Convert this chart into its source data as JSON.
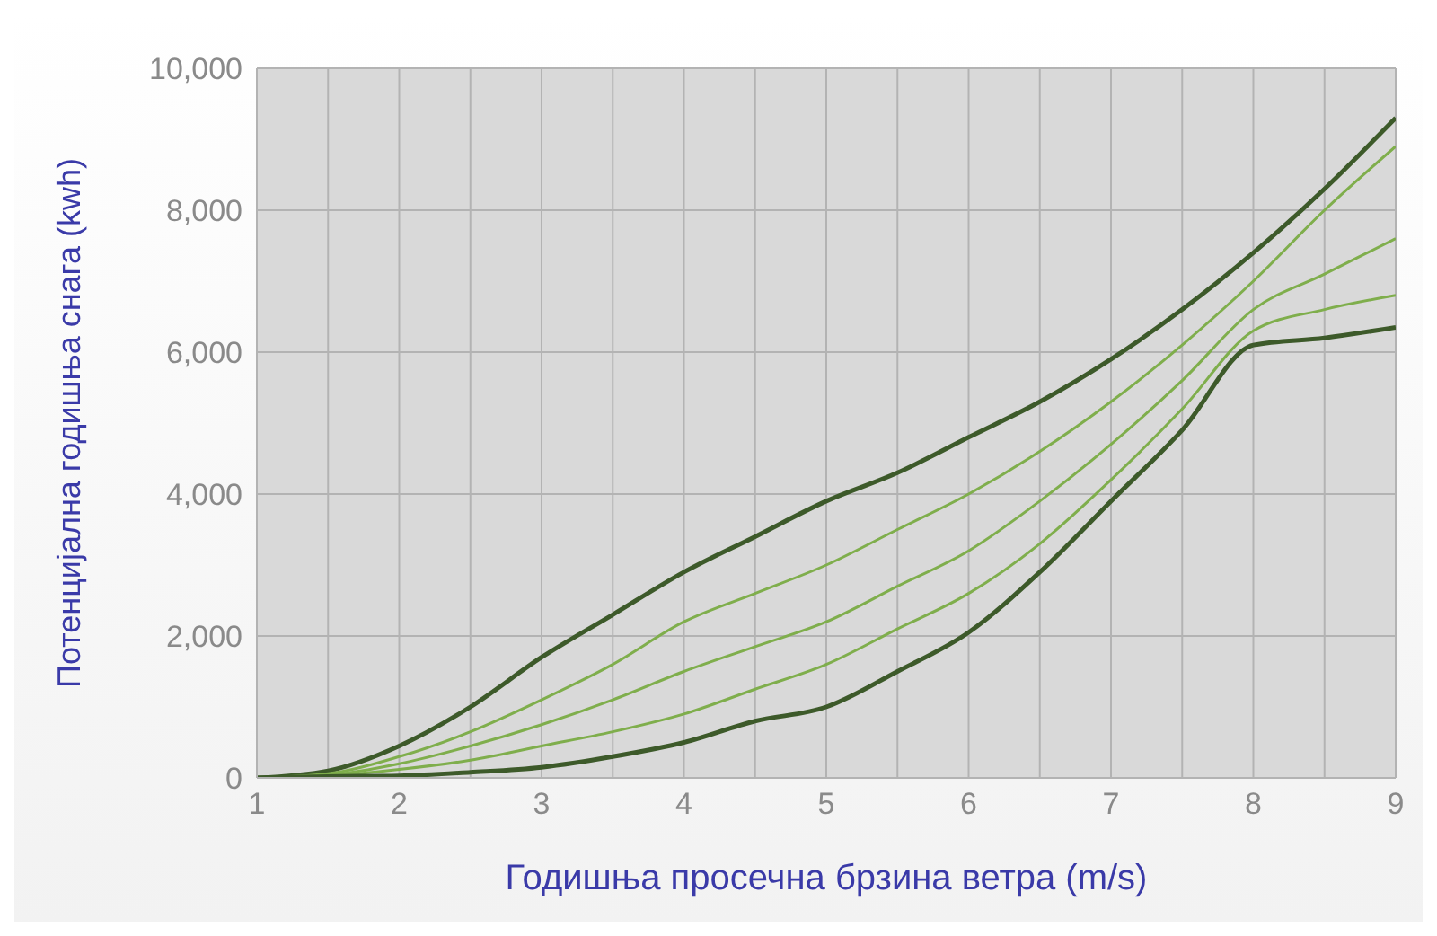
{
  "chart_data": {
    "type": "line",
    "xlabel": "Годишња просечна брзина ветра (m/s)",
    "ylabel": "Потенцијална годишња снага (kwh)",
    "x": [
      1,
      1.5,
      2,
      2.5,
      3,
      3.5,
      4,
      4.5,
      5,
      5.5,
      6,
      6.5,
      7,
      7.5,
      8,
      8.5,
      9
    ],
    "series": [
      {
        "color": "#3d5a2a",
        "values": [
          0,
          100,
          450,
          1000,
          1700,
          2300,
          2900,
          3400,
          3900,
          4300,
          4800,
          5300,
          5900,
          6600,
          7400,
          8300,
          9300
        ]
      },
      {
        "color": "#7fae4c",
        "values": [
          0,
          60,
          300,
          650,
          1100,
          1600,
          2200,
          2600,
          3000,
          3500,
          4000,
          4600,
          5300,
          6100,
          7000,
          8000,
          8900
        ]
      },
      {
        "color": "#7fae4c",
        "values": [
          0,
          40,
          200,
          450,
          750,
          1100,
          1500,
          1850,
          2200,
          2700,
          3200,
          3900,
          4700,
          5600,
          6600,
          7100,
          7600
        ]
      },
      {
        "color": "#7fae4c",
        "values": [
          0,
          30,
          120,
          250,
          450,
          650,
          900,
          1250,
          1600,
          2100,
          2600,
          3300,
          4200,
          5200,
          6300,
          6600,
          6800
        ]
      },
      {
        "color": "#3d5a2a",
        "values": [
          0,
          20,
          30,
          80,
          150,
          300,
          500,
          800,
          1000,
          1500,
          2050,
          2900,
          3900,
          4900,
          6100,
          6200,
          6350
        ]
      }
    ],
    "xlim": [
      1,
      9
    ],
    "xticks": [
      1,
      {
        "value": 1.5,
        "label": null
      },
      2,
      {
        "value": 2.5,
        "label": null
      },
      3,
      {
        "value": 3.5,
        "label": null
      },
      4,
      {
        "value": 4.5,
        "label": null
      },
      5,
      {
        "value": 5.5,
        "label": null
      },
      6,
      {
        "value": 6.5,
        "label": null
      },
      7,
      {
        "value": 7.5,
        "label": null
      },
      8,
      {
        "value": 8.5,
        "label": null
      },
      9
    ],
    "ylim": [
      0,
      10000
    ],
    "yticks": [
      0,
      {
        "value": 2000,
        "label": "2,000"
      },
      {
        "value": 4000,
        "label": "4,000"
      },
      {
        "value": 6000,
        "label": "6,000"
      },
      {
        "value": 8000,
        "label": "8,000"
      },
      {
        "value": 10000,
        "label": "10,000"
      }
    ],
    "grid": true,
    "marker": "none",
    "line_style": "solid"
  }
}
